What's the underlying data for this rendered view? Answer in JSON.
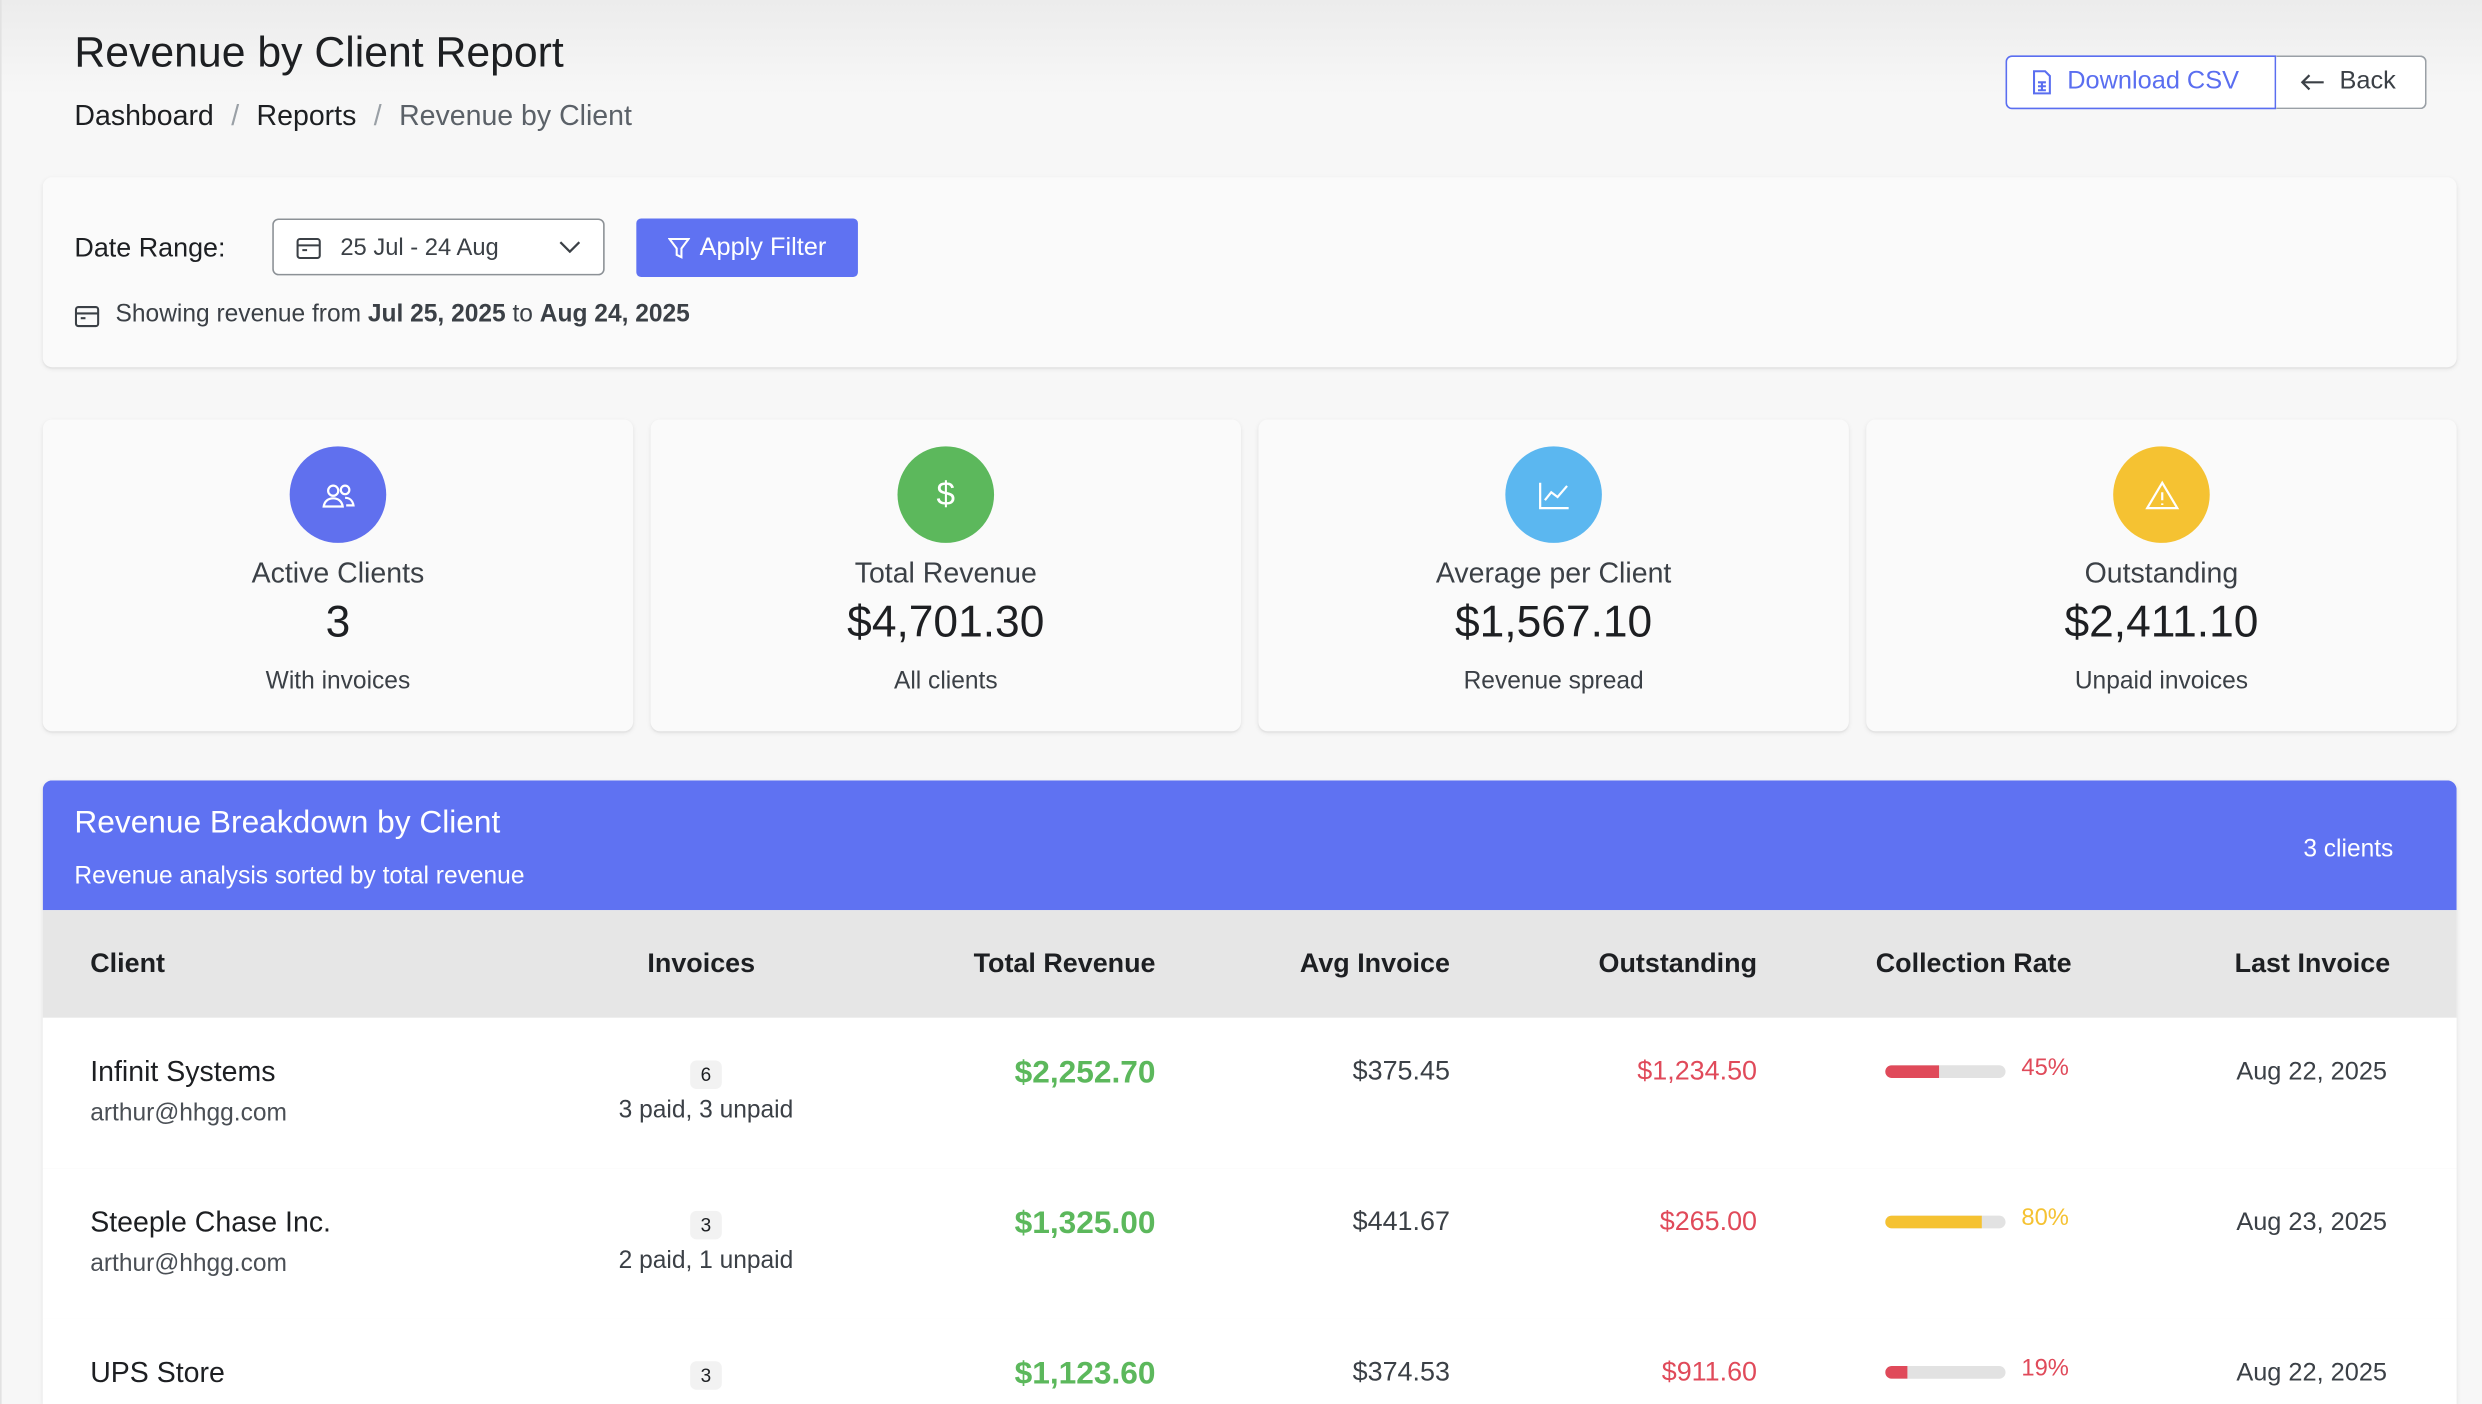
{
  "header": {
    "title": "Revenue by Client Report",
    "breadcrumb": [
      "Dashboard",
      "Reports",
      "Revenue by Client"
    ],
    "download_label": "Download CSV",
    "back_label": "Back"
  },
  "filter": {
    "label": "Date Range:",
    "selected_range": "25 Jul - 24 Aug",
    "apply_label": "Apply Filter",
    "showing_prefix": "Showing revenue from",
    "from": "Jul 25, 2025",
    "to_word": "to",
    "to": "Aug 24, 2025"
  },
  "stats": [
    {
      "label": "Active Clients",
      "value": "3",
      "sub": "With invoices",
      "icon": "users-icon",
      "color": "#5f72f2"
    },
    {
      "label": "Total Revenue",
      "value": "$4,701.30",
      "sub": "All clients",
      "icon": "dollar-icon",
      "color": "#5cb85c"
    },
    {
      "label": "Average per Client",
      "value": "$1,567.10",
      "sub": "Revenue spread",
      "icon": "chart-line-icon",
      "color": "#5bb7f0"
    },
    {
      "label": "Outstanding",
      "value": "$2,411.10",
      "sub": "Unpaid invoices",
      "icon": "warning-icon",
      "color": "#f5c232"
    }
  ],
  "table": {
    "title": "Revenue Breakdown by Client",
    "subtitle": "Revenue analysis sorted by total revenue",
    "count": "3 clients",
    "columns": [
      "Client",
      "Invoices",
      "Total Revenue",
      "Avg Invoice",
      "Outstanding",
      "Collection Rate",
      "Last Invoice"
    ],
    "rows": [
      {
        "client": "Infinit Systems",
        "email": "arthur@hhgg.com",
        "invoices": "6",
        "invoice_status": "3 paid, 3 unpaid",
        "revenue": "$2,252.70",
        "avg": "$375.45",
        "outstanding": "$1,234.50",
        "rate": "45%",
        "rate_value": 45,
        "rate_color": "#e04a5a",
        "last": "Aug 22, 2025"
      },
      {
        "client": "Steeple Chase Inc.",
        "email": "arthur@hhgg.com",
        "invoices": "3",
        "invoice_status": "2 paid, 1 unpaid",
        "revenue": "$1,325.00",
        "avg": "$441.67",
        "outstanding": "$265.00",
        "rate": "80%",
        "rate_value": 80,
        "rate_color": "#f5c232",
        "last": "Aug 23, 2025"
      },
      {
        "client": "UPS Store",
        "email": "",
        "invoices": "3",
        "invoice_status": "",
        "revenue": "$1,123.60",
        "avg": "$374.53",
        "outstanding": "$911.60",
        "rate": "19%",
        "rate_value": 19,
        "rate_color": "#e04a5a",
        "last": "Aug 22, 2025"
      }
    ]
  }
}
